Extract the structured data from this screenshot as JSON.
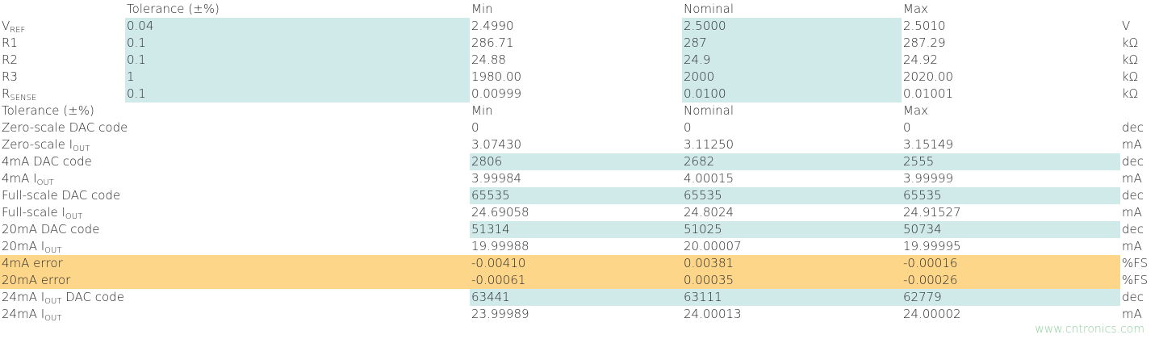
{
  "top_table": {
    "header": {
      "tolerance": "Tolerance (±%)",
      "min": "Min",
      "nominal": "Nominal",
      "max": "Max"
    },
    "highlight": "#d0eaea",
    "rows": [
      {
        "label": [
          {
            "t": "V"
          },
          {
            "sub": "REF"
          }
        ],
        "tolerance": "0.04",
        "min": "2.4990",
        "nominal": "2.5000",
        "max": "2.5010",
        "unit": "V"
      },
      {
        "label": [
          {
            "t": "R1"
          }
        ],
        "tolerance": "0.1",
        "min": "286.71",
        "nominal": "287",
        "max": "287.29",
        "unit": "kΩ"
      },
      {
        "label": [
          {
            "t": "R2"
          }
        ],
        "tolerance": "0.1",
        "min": "24.88",
        "nominal": "24.9",
        "max": "24.92",
        "unit": "kΩ"
      },
      {
        "label": [
          {
            "t": "R3"
          }
        ],
        "tolerance": "1",
        "min": "1980.00",
        "nominal": "2000",
        "max": "2020.00",
        "unit": "kΩ"
      },
      {
        "label": [
          {
            "t": "R"
          },
          {
            "sub": "SENSE"
          }
        ],
        "tolerance": "0.1",
        "min": "0.00999",
        "nominal": "0.0100",
        "max": "0.01001",
        "unit": "kΩ"
      }
    ]
  },
  "bottom_table": {
    "header": {
      "tolerance": "Tolerance (±%)",
      "min": "Min",
      "nominal": "Nominal",
      "max": "Max"
    },
    "rows": [
      {
        "label": [
          {
            "t": "Zero-scale DAC code"
          }
        ],
        "min": "0",
        "nominal": "0",
        "max": "0",
        "unit": "dec"
      },
      {
        "label": [
          {
            "t": "Zero-scale I"
          },
          {
            "sub": "OUT"
          }
        ],
        "min": "3.07430",
        "nominal": "3.11250",
        "max": "3.15149",
        "unit": "mA"
      },
      {
        "label": [
          {
            "t": "4mA DAC code"
          }
        ],
        "min": "2806",
        "nominal": "2682",
        "max": "2555",
        "unit": "dec",
        "highlight": "#d0eaea"
      },
      {
        "label": [
          {
            "t": "4mA I"
          },
          {
            "sub": "OUT"
          }
        ],
        "min": "3.99984",
        "nominal": "4.00015",
        "max": "3.99999",
        "unit": "mA"
      },
      {
        "label": [
          {
            "t": "Full-scale DAC code"
          }
        ],
        "min": "65535",
        "nominal": "65535",
        "max": "65535",
        "unit": "dec",
        "highlight": "#d0eaea"
      },
      {
        "label": [
          {
            "t": "Full-scale I"
          },
          {
            "sub": "OUT"
          }
        ],
        "min": "24.69058",
        "nominal": "24.8024",
        "max": "24.91527",
        "unit": "mA"
      },
      {
        "label": [
          {
            "t": "20mA DAC code"
          }
        ],
        "min": "51314",
        "nominal": "51025",
        "max": "50734",
        "unit": "dec",
        "highlight": "#d0eaea"
      },
      {
        "label": [
          {
            "t": "20mA I"
          },
          {
            "sub": "OUT"
          }
        ],
        "min": "19.99988",
        "nominal": "20.00007",
        "max": "19.99995",
        "unit": "mA"
      },
      {
        "label": [
          {
            "t": "4mA error"
          }
        ],
        "min": "-0.00410",
        "nominal": "0.00381",
        "max": "-0.00016",
        "unit": "%FS",
        "highlight": "#fdd68a"
      },
      {
        "label": [
          {
            "t": "20mA error"
          }
        ],
        "min": "-0.00061",
        "nominal": "0.00035",
        "max": "-0.00026",
        "unit": "%FS",
        "highlight": "#fdd68a"
      },
      {
        "label": [
          {
            "t": "24mA I"
          },
          {
            "sub": "OUT"
          },
          {
            "t": " DAC code"
          }
        ],
        "min": "63441",
        "nominal": "63111",
        "max": "62779",
        "unit": "dec",
        "highlight": "#d0eaea"
      },
      {
        "label": [
          {
            "t": "24mA I"
          },
          {
            "sub": "OUT"
          }
        ],
        "min": "23.99989",
        "nominal": "24.00013",
        "max": "24.00002",
        "unit": "mA"
      }
    ]
  },
  "watermark": "www.cntronics.com"
}
